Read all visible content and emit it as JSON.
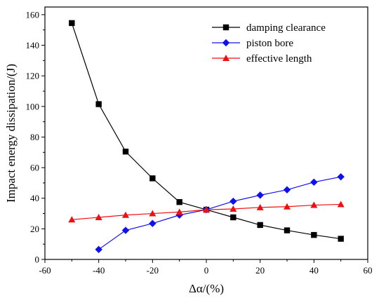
{
  "chart_data": {
    "type": "line",
    "title": "",
    "xlabel": "Δα/(%)",
    "ylabel": "Impact energy dissipation/(J)",
    "xlim": [
      -60,
      60
    ],
    "ylim": [
      0,
      165
    ],
    "xticks": [
      -60,
      -40,
      -20,
      0,
      20,
      40,
      60
    ],
    "yticks": [
      0,
      20,
      40,
      60,
      80,
      100,
      120,
      140,
      160
    ],
    "grid": false,
    "legend_position": "top-right",
    "series": [
      {
        "name": "damping clearance",
        "color": "#000000",
        "marker": "square",
        "x": [
          -50,
          -40,
          -30,
          -20,
          -10,
          0,
          10,
          20,
          30,
          40,
          50
        ],
        "y": [
          154.5,
          101.5,
          70.5,
          53.0,
          37.5,
          32.5,
          27.5,
          22.5,
          19.0,
          16.0,
          13.5
        ]
      },
      {
        "name": "piston bore",
        "color": "#1010ee",
        "marker": "diamond",
        "x": [
          -40,
          -30,
          -20,
          -10,
          0,
          10,
          20,
          30,
          40,
          50
        ],
        "y": [
          6.5,
          19.0,
          23.5,
          29.0,
          32.5,
          38.0,
          42.0,
          45.5,
          50.5,
          54.0
        ]
      },
      {
        "name": "effective length",
        "color": "#ee1010",
        "marker": "triangle",
        "x": [
          -50,
          -40,
          -30,
          -20,
          -10,
          0,
          10,
          20,
          30,
          40,
          50
        ],
        "y": [
          26.0,
          27.5,
          29.0,
          30.0,
          31.0,
          32.5,
          33.0,
          34.0,
          34.5,
          35.5,
          36.0
        ]
      }
    ]
  }
}
